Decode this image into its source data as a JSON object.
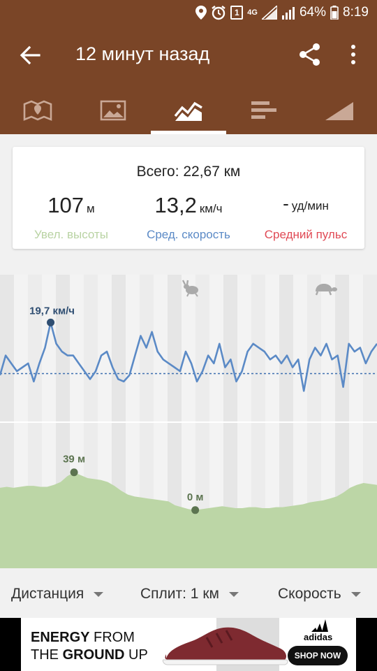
{
  "status_bar": {
    "network": "4G",
    "sim": "1",
    "battery": "64%",
    "time": "8:19",
    "icons": [
      "location-icon",
      "alarm-icon",
      "sim-icon",
      "signal-icon",
      "battery-icon"
    ]
  },
  "app_bar": {
    "title": "12 минут назад",
    "icons": [
      "back-arrow-icon",
      "share-icon",
      "more-vert-icon"
    ],
    "background": "#7a4527"
  },
  "tabs": [
    {
      "icon": "map-icon",
      "active": false
    },
    {
      "icon": "image-icon",
      "active": false
    },
    {
      "icon": "chart-icon",
      "active": true
    },
    {
      "icon": "bars-icon",
      "active": false
    },
    {
      "icon": "elevation-icon",
      "active": false
    }
  ],
  "summary": {
    "total": "Всего: 22,67 км",
    "elevation": {
      "value": "107",
      "unit": "м",
      "label": "Увел. высоты",
      "color": "#b9d3a3"
    },
    "speed": {
      "value": "13,2",
      "unit": "км/ч",
      "label": "Сред. скорость",
      "color": "#5b8ac6"
    },
    "pulse": {
      "value": "-",
      "unit": "уд/мин",
      "label": "Средний пульс",
      "color": "#e04a55"
    }
  },
  "chart_data": {
    "type": "line",
    "speed_series": {
      "color": "#5b8ac6",
      "values": [
        13,
        15.5,
        14.5,
        13.5,
        14,
        14.5,
        12.2,
        14.5,
        16.5,
        19.7,
        17,
        16,
        15.5,
        15.5,
        14.5,
        13.5,
        12.5,
        13.5,
        15.5,
        16,
        14,
        12.5,
        12.2,
        13,
        15.5,
        18,
        16.5,
        18.5,
        16,
        15,
        14.5,
        14,
        13.5,
        16,
        14.5,
        12.2,
        13.5,
        15.5,
        14.5,
        17,
        14,
        15,
        12.2,
        13.5,
        16,
        17,
        16.5,
        16,
        15,
        15.5,
        14.5,
        15.5,
        14,
        15,
        11,
        15,
        16.5,
        15.5,
        17,
        15,
        15.5,
        11.5,
        17,
        16,
        16.5,
        14.5,
        16,
        17
      ],
      "average": 13.2,
      "max_label": "19,7 км/ч",
      "range": [
        8,
        24
      ]
    },
    "elevation_series": {
      "color": "#bcd6a6",
      "values": [
        23,
        24,
        23,
        24,
        25,
        25,
        24,
        24,
        26,
        29,
        35,
        39,
        36,
        33,
        32,
        31,
        29,
        25,
        20,
        16,
        14,
        13,
        12,
        11,
        10,
        9,
        5,
        3,
        1,
        0,
        1,
        2,
        3,
        4,
        3,
        2,
        2,
        3,
        3,
        2,
        2,
        3,
        3,
        4,
        5,
        6,
        8,
        9,
        10,
        12,
        14,
        18,
        23,
        26,
        28,
        27,
        26
      ],
      "max_label": "39 м",
      "min_label": "0 м",
      "range": [
        -60,
        90
      ]
    },
    "markers": [
      "rabbit-icon",
      "turtle-icon"
    ]
  },
  "selectors": {
    "left": "Дистанция",
    "middle": "Сплит: 1 км",
    "right": "Скорость"
  },
  "ad": {
    "line1_bold": "ENERGY",
    "line1_rest": " FROM",
    "line2_lead": "THE ",
    "line2_bold": "GROUND",
    "line2_rest": " UP",
    "brand": "adidas",
    "cta": "SHOP NOW"
  }
}
